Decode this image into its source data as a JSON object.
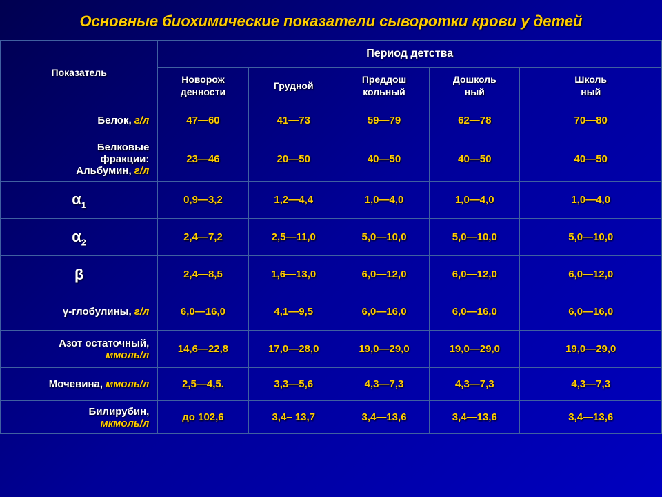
{
  "title": "Основные биохимические показатели сыворотки крови у детей",
  "header": {
    "indicator": "Показатель",
    "period_group": "Период детства",
    "periods": {
      "p1": "Новорож\nденности",
      "p2": "Грудной",
      "p3": "Преддош\nкольный",
      "p4": "Дошколь\nный",
      "p5": "Школь\nный"
    }
  },
  "rows": {
    "protein": {
      "label_w": "Белок, ",
      "label_y": "г/л",
      "v": [
        "47—60",
        "41—73",
        "59—79",
        "62—78",
        "70—80"
      ]
    },
    "albumin": {
      "label_w": "Белковые\nфракции:\nАльбумин, ",
      "label_y": "г/л",
      "v": [
        "23—46",
        "20—50",
        "40—50",
        "40—50",
        "40—50"
      ]
    },
    "a1": {
      "label": "α",
      "sub": "1",
      "v": [
        "0,9—3,2",
        "1,2—4,4",
        "1,0—4,0",
        "1,0—4,0",
        "1,0—4,0"
      ]
    },
    "a2": {
      "label": "α",
      "sub": "2",
      "v": [
        "2,4—7,2",
        "2,5—11,0",
        "5,0—10,0",
        "5,0—10,0",
        "5,0—10,0"
      ]
    },
    "beta": {
      "label": "β",
      "v": [
        "2,4—8,5",
        "1,6—13,0",
        "6,0—12,0",
        "6,0—12,0",
        "6,0—12,0"
      ]
    },
    "gamma": {
      "label_w": "γ-глобулины, ",
      "label_y": "г/л",
      "v": [
        "6,0—16,0",
        "4,1—9,5",
        "6,0—16,0",
        "6,0—16,0",
        "6,0—16,0"
      ]
    },
    "nitrogen": {
      "label_w": "Азот остаточный,\n",
      "label_y": "ммоль/л",
      "v": [
        "14,6—22,8",
        "17,0—28,0",
        "19,0—29,0",
        "19,0—29,0",
        "19,0—29,0"
      ]
    },
    "urea": {
      "label_w": "Мочевина, ",
      "label_y": "ммоль/л",
      "v": [
        "2,5—4,5.",
        "3,3—5,6",
        "4,3—7,3",
        "4,3—7,3",
        "4,3—7,3"
      ]
    },
    "bilirubin": {
      "label_w": "Билирубин,\n",
      "label_y": "мкмоль/л",
      "v": [
        "до 102,6",
        "3,4– 13,7",
        "3,4—13,6",
        "3,4—13,6",
        "3,4—13,6"
      ]
    }
  },
  "style": {
    "title_color": "#ffcc00",
    "value_color": "#ffcc00",
    "header_color": "#ffffff",
    "border_color": "#4060a0",
    "bg_gradient_start": "#000050",
    "bg_gradient_end": "#0000c0",
    "title_fontsize": 22,
    "value_fontsize": 15
  }
}
